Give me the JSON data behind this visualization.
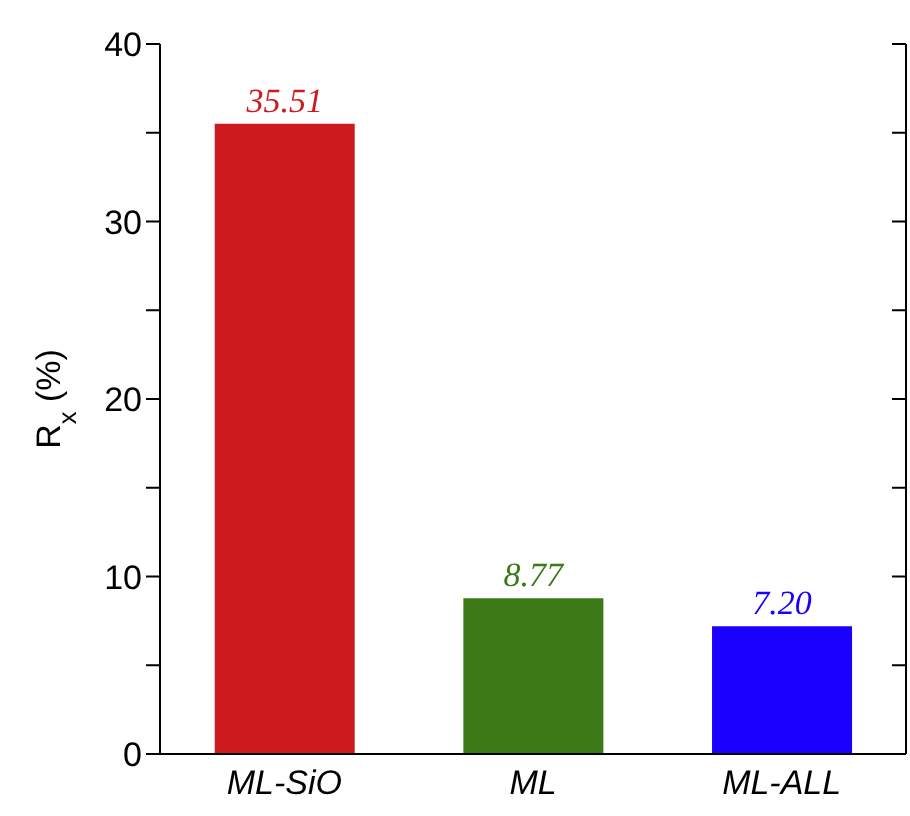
{
  "chart_data": {
    "type": "bar",
    "ylabel": "R$_{x}$ (%)",
    "categories": [
      "ML-SiO",
      "ML",
      "ML-ALL"
    ],
    "values": [
      35.51,
      8.77,
      7.2
    ],
    "colors": [
      "#cc1a1e",
      "#3c7a17",
      "#1a00ff"
    ],
    "value_labels": [
      "35.51",
      "8.77",
      "7.20"
    ],
    "ylim": [
      0,
      40
    ],
    "yticks": [
      0,
      {
        "value": 5,
        "label": null
      },
      10,
      {
        "value": 15,
        "label": null
      },
      20,
      {
        "value": 25,
        "label": null
      },
      30,
      {
        "value": 35,
        "label": null
      },
      40
    ],
    "grid": false,
    "legend": false
  }
}
